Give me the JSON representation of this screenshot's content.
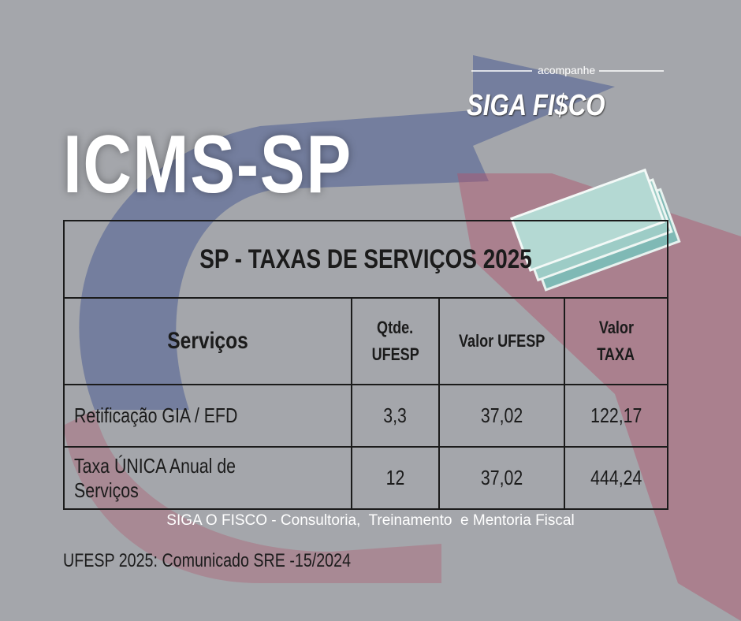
{
  "logo": {
    "tagline": "acompanhe",
    "word1": "SIGA",
    "word2": "FI$CO"
  },
  "header": {
    "title": "ICMS-SP"
  },
  "table": {
    "title": "SP   - TAXAS DE SERVIÇOS 2025",
    "columns": [
      [
        "Serviços"
      ],
      [
        "Qtde.",
        "UFESP"
      ],
      [
        "Valor UFESP"
      ],
      [
        "Valor",
        "TAXA"
      ]
    ],
    "rows": [
      [
        "Retificação  GIA / EFD",
        "3,3",
        "37,02",
        "122,17"
      ],
      [
        "Taxa ÚNICA   Anual de Serviços",
        "12",
        "37,02",
        "444,24"
      ]
    ]
  },
  "footer": {
    "credit": "SIGA O FISCO - Consultoria,  Treinamento  e Mentoria Fiscal",
    "note": "UFESP 2025: Comunicado SRE -15/2024"
  }
}
